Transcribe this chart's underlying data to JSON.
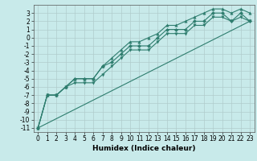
{
  "title": "",
  "xlabel": "Humidex (Indice chaleur)",
  "background_color": "#c8eaea",
  "grid_color": "#b0cccc",
  "line_color": "#2e7d6e",
  "x_data": [
    0,
    1,
    2,
    3,
    4,
    5,
    6,
    7,
    8,
    9,
    10,
    11,
    12,
    13,
    14,
    15,
    16,
    17,
    18,
    19,
    20,
    21,
    22,
    23
  ],
  "y_main": [
    -11,
    -7,
    -7,
    -6,
    -5,
    -5,
    -5,
    -3.5,
    -3,
    -2,
    -1,
    -1,
    -1,
    0,
    1,
    1,
    1,
    2,
    2,
    3,
    3,
    2,
    3,
    2
  ],
  "y_upper": [
    -11,
    -7,
    -7,
    -6,
    -5,
    -5,
    -5,
    -3.5,
    -2.5,
    -1.5,
    -0.5,
    -0.5,
    0,
    0.5,
    1.5,
    1.5,
    2,
    2.5,
    3,
    3.5,
    3.5,
    3,
    3.5,
    3
  ],
  "y_lower": [
    -11,
    -7,
    -7,
    -6,
    -5.5,
    -5.5,
    -5.5,
    -4.5,
    -3.5,
    -2.5,
    -1.5,
    -1.5,
    -1.5,
    -0.5,
    0.5,
    0.5,
    0.5,
    1.5,
    1.5,
    2.5,
    2.5,
    2,
    2.5,
    2
  ],
  "ylim": [
    -11.5,
    4
  ],
  "xlim": [
    -0.5,
    23.5
  ],
  "yticks": [
    -11,
    -10,
    -9,
    -8,
    -7,
    -6,
    -5,
    -4,
    -3,
    -2,
    -1,
    0,
    1,
    2,
    3
  ],
  "xticks": [
    0,
    1,
    2,
    3,
    4,
    5,
    6,
    7,
    8,
    9,
    10,
    11,
    12,
    13,
    14,
    15,
    16,
    17,
    18,
    19,
    20,
    21,
    22,
    23
  ],
  "tick_fontsize": 5.5,
  "xlabel_fontsize": 6.5
}
